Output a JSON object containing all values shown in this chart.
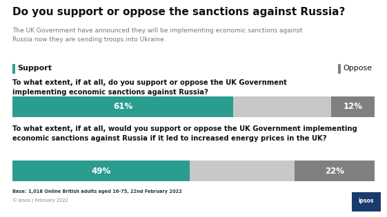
{
  "title": "Do you support or oppose the sanctions against Russia?",
  "subtitle": "The UK Government have announced they will be implementing economic sanctions against\nRussia now they are sending troops into Ukraine.",
  "legend_support": "Support",
  "legend_oppose": "Oppose",
  "support_color": "#2a9d8f",
  "oppose_color": "#808080",
  "light_gray": "#c8c8c8",
  "bar1_question": "To what extent, if at all, do you support or oppose the UK Government\nimplementing economic sanctions against Russia?",
  "bar1_support": 61,
  "bar1_oppose": 12,
  "bar1_neutral": 27,
  "bar2_question": "To what extent, if at all, would you support or oppose the UK Government implementing\neconomic sanctions against Russia if it led to increased energy prices in the UK?",
  "bar2_support": 49,
  "bar2_oppose": 22,
  "bar2_neutral": 29,
  "footnote": "Base: 1,018 Online British adults aged 16-75, 22nd February 2022",
  "copyright": "© Ipsos / February 2022",
  "background_color": "#ffffff",
  "title_fontsize": 11,
  "subtitle_fontsize": 6.5,
  "question_fontsize": 7.2,
  "bar_label_fontsize": 8.5,
  "legend_fontsize": 8,
  "footnote_fontsize": 4.8
}
